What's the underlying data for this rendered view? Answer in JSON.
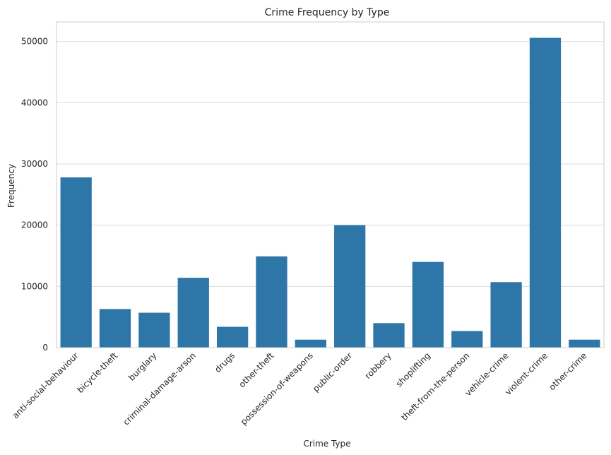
{
  "chart_data": {
    "type": "bar",
    "title": "Crime Frequency by Type",
    "xlabel": "Crime Type",
    "ylabel": "Frequency",
    "categories": [
      "anti-social-behaviour",
      "bicycle-theft",
      "burglary",
      "criminal-damage-arson",
      "drugs",
      "other-theft",
      "possession-of-weapons",
      "public-order",
      "robbery",
      "shoplifting",
      "theft-from-the-person",
      "vehicle-crime",
      "violent-crime",
      "other-crime"
    ],
    "values": [
      27800,
      6300,
      5700,
      11400,
      3400,
      14900,
      1300,
      20000,
      4000,
      14000,
      2700,
      10700,
      50600,
      1300
    ],
    "ylim": [
      0,
      53200
    ],
    "yticks": [
      0,
      10000,
      20000,
      30000,
      40000,
      50000
    ],
    "grid": true,
    "bar_color": "#2e75a8",
    "grid_color": "#dcdcdc",
    "axes_edge_color": "#cccccc"
  }
}
